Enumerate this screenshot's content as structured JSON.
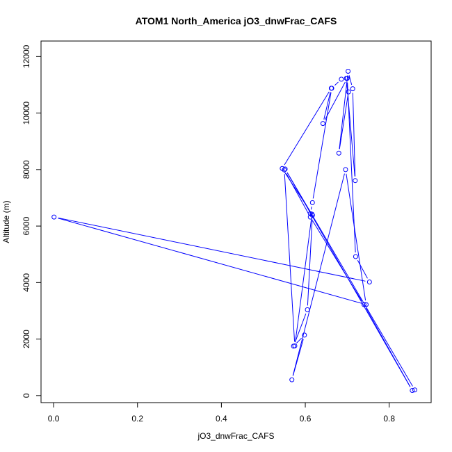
{
  "chart_data": {
    "type": "line",
    "title": "ATOM1 North_America jO3_dnwFrac_CAFS",
    "xlabel": "jO3_dnwFrac_CAFS",
    "ylabel": "Altitude (m)",
    "xlim": [
      -0.03,
      0.9
    ],
    "ylim": [
      -250,
      12550
    ],
    "xticks": [
      0,
      0.2,
      0.4,
      0.6,
      0.8
    ],
    "xtick_labels": [
      "0.0",
      "0.2",
      "0.4",
      "0.6",
      "0.8"
    ],
    "yticks": [
      0,
      2000,
      4000,
      6000,
      8000,
      10000,
      12000
    ],
    "ytick_labels": [
      "0",
      "2000",
      "4000",
      "6000",
      "8000",
      "10000",
      "12000"
    ],
    "grid": false,
    "markers": "open-circle",
    "series": [
      {
        "color": "#0000ff",
        "x": [
          0.703,
          0.68,
          0.702,
          0.713,
          0.719,
          0.698,
          0.686,
          0.663,
          0.617,
          0.612,
          0.617,
          0.605,
          0.572,
          0.598,
          0.568,
          0.696,
          0.745,
          0.001,
          0.753,
          0.72,
          0.7,
          0.642,
          0.662,
          0.545,
          0.616,
          0.575,
          0.55,
          0.612,
          0.74,
          0.855,
          0.552,
          0.861
        ],
        "y": [
          10750,
          8580,
          11480,
          10860,
          7610,
          11230,
          11200,
          10880,
          6830,
          6440,
          6380,
          3040,
          1750,
          2140,
          560,
          8000,
          3220,
          6320,
          4020,
          4920,
          11230,
          9630,
          10880,
          8040,
          6420,
          1760,
          7990,
          6320,
          3220,
          180,
          8020,
          200
        ]
      }
    ]
  }
}
